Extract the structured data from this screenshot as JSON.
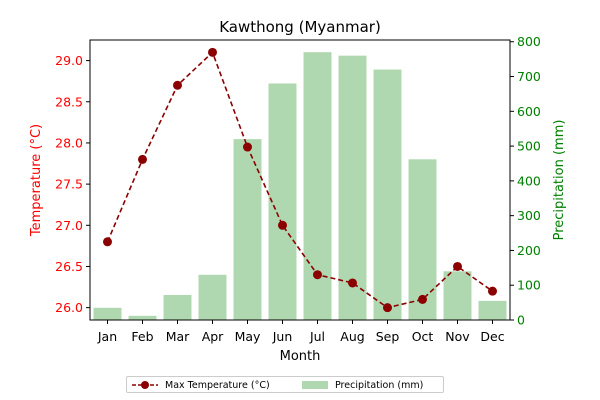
{
  "chart_data": {
    "type": "bar+line",
    "title": "Kawthong (Myanmar)",
    "xlabel": "Month",
    "categories": [
      "Jan",
      "Feb",
      "Mar",
      "Apr",
      "May",
      "Jun",
      "Jul",
      "Aug",
      "Sep",
      "Oct",
      "Nov",
      "Dec"
    ],
    "left_axis": {
      "label": "Temperature (°C)",
      "color": "#ff0000",
      "ylim": [
        25.85,
        29.25
      ],
      "ticks": [
        "26.0",
        "26.5",
        "27.0",
        "27.5",
        "28.0",
        "28.5",
        "29.0"
      ]
    },
    "right_axis": {
      "label": "Precipitation (mm)",
      "color": "#008000",
      "ylim": [
        0,
        805
      ],
      "ticks": [
        "0",
        "100",
        "200",
        "300",
        "400",
        "500",
        "600",
        "700",
        "800"
      ]
    },
    "series": [
      {
        "name": "Max Temperature (°C)",
        "kind": "line",
        "axis": "left",
        "color": "#8b0000",
        "style": "dashed-with-circle-markers",
        "values": [
          26.8,
          27.8,
          28.7,
          29.1,
          27.95,
          27.0,
          26.4,
          26.3,
          26.0,
          26.1,
          26.5,
          26.2
        ]
      },
      {
        "name": "Precipitation (mm)",
        "kind": "bar",
        "axis": "right",
        "color": "#b0d8b0",
        "values": [
          35,
          12,
          72,
          130,
          520,
          680,
          770,
          760,
          720,
          462,
          140,
          55
        ]
      }
    ],
    "legend_position": "bottom-center"
  }
}
